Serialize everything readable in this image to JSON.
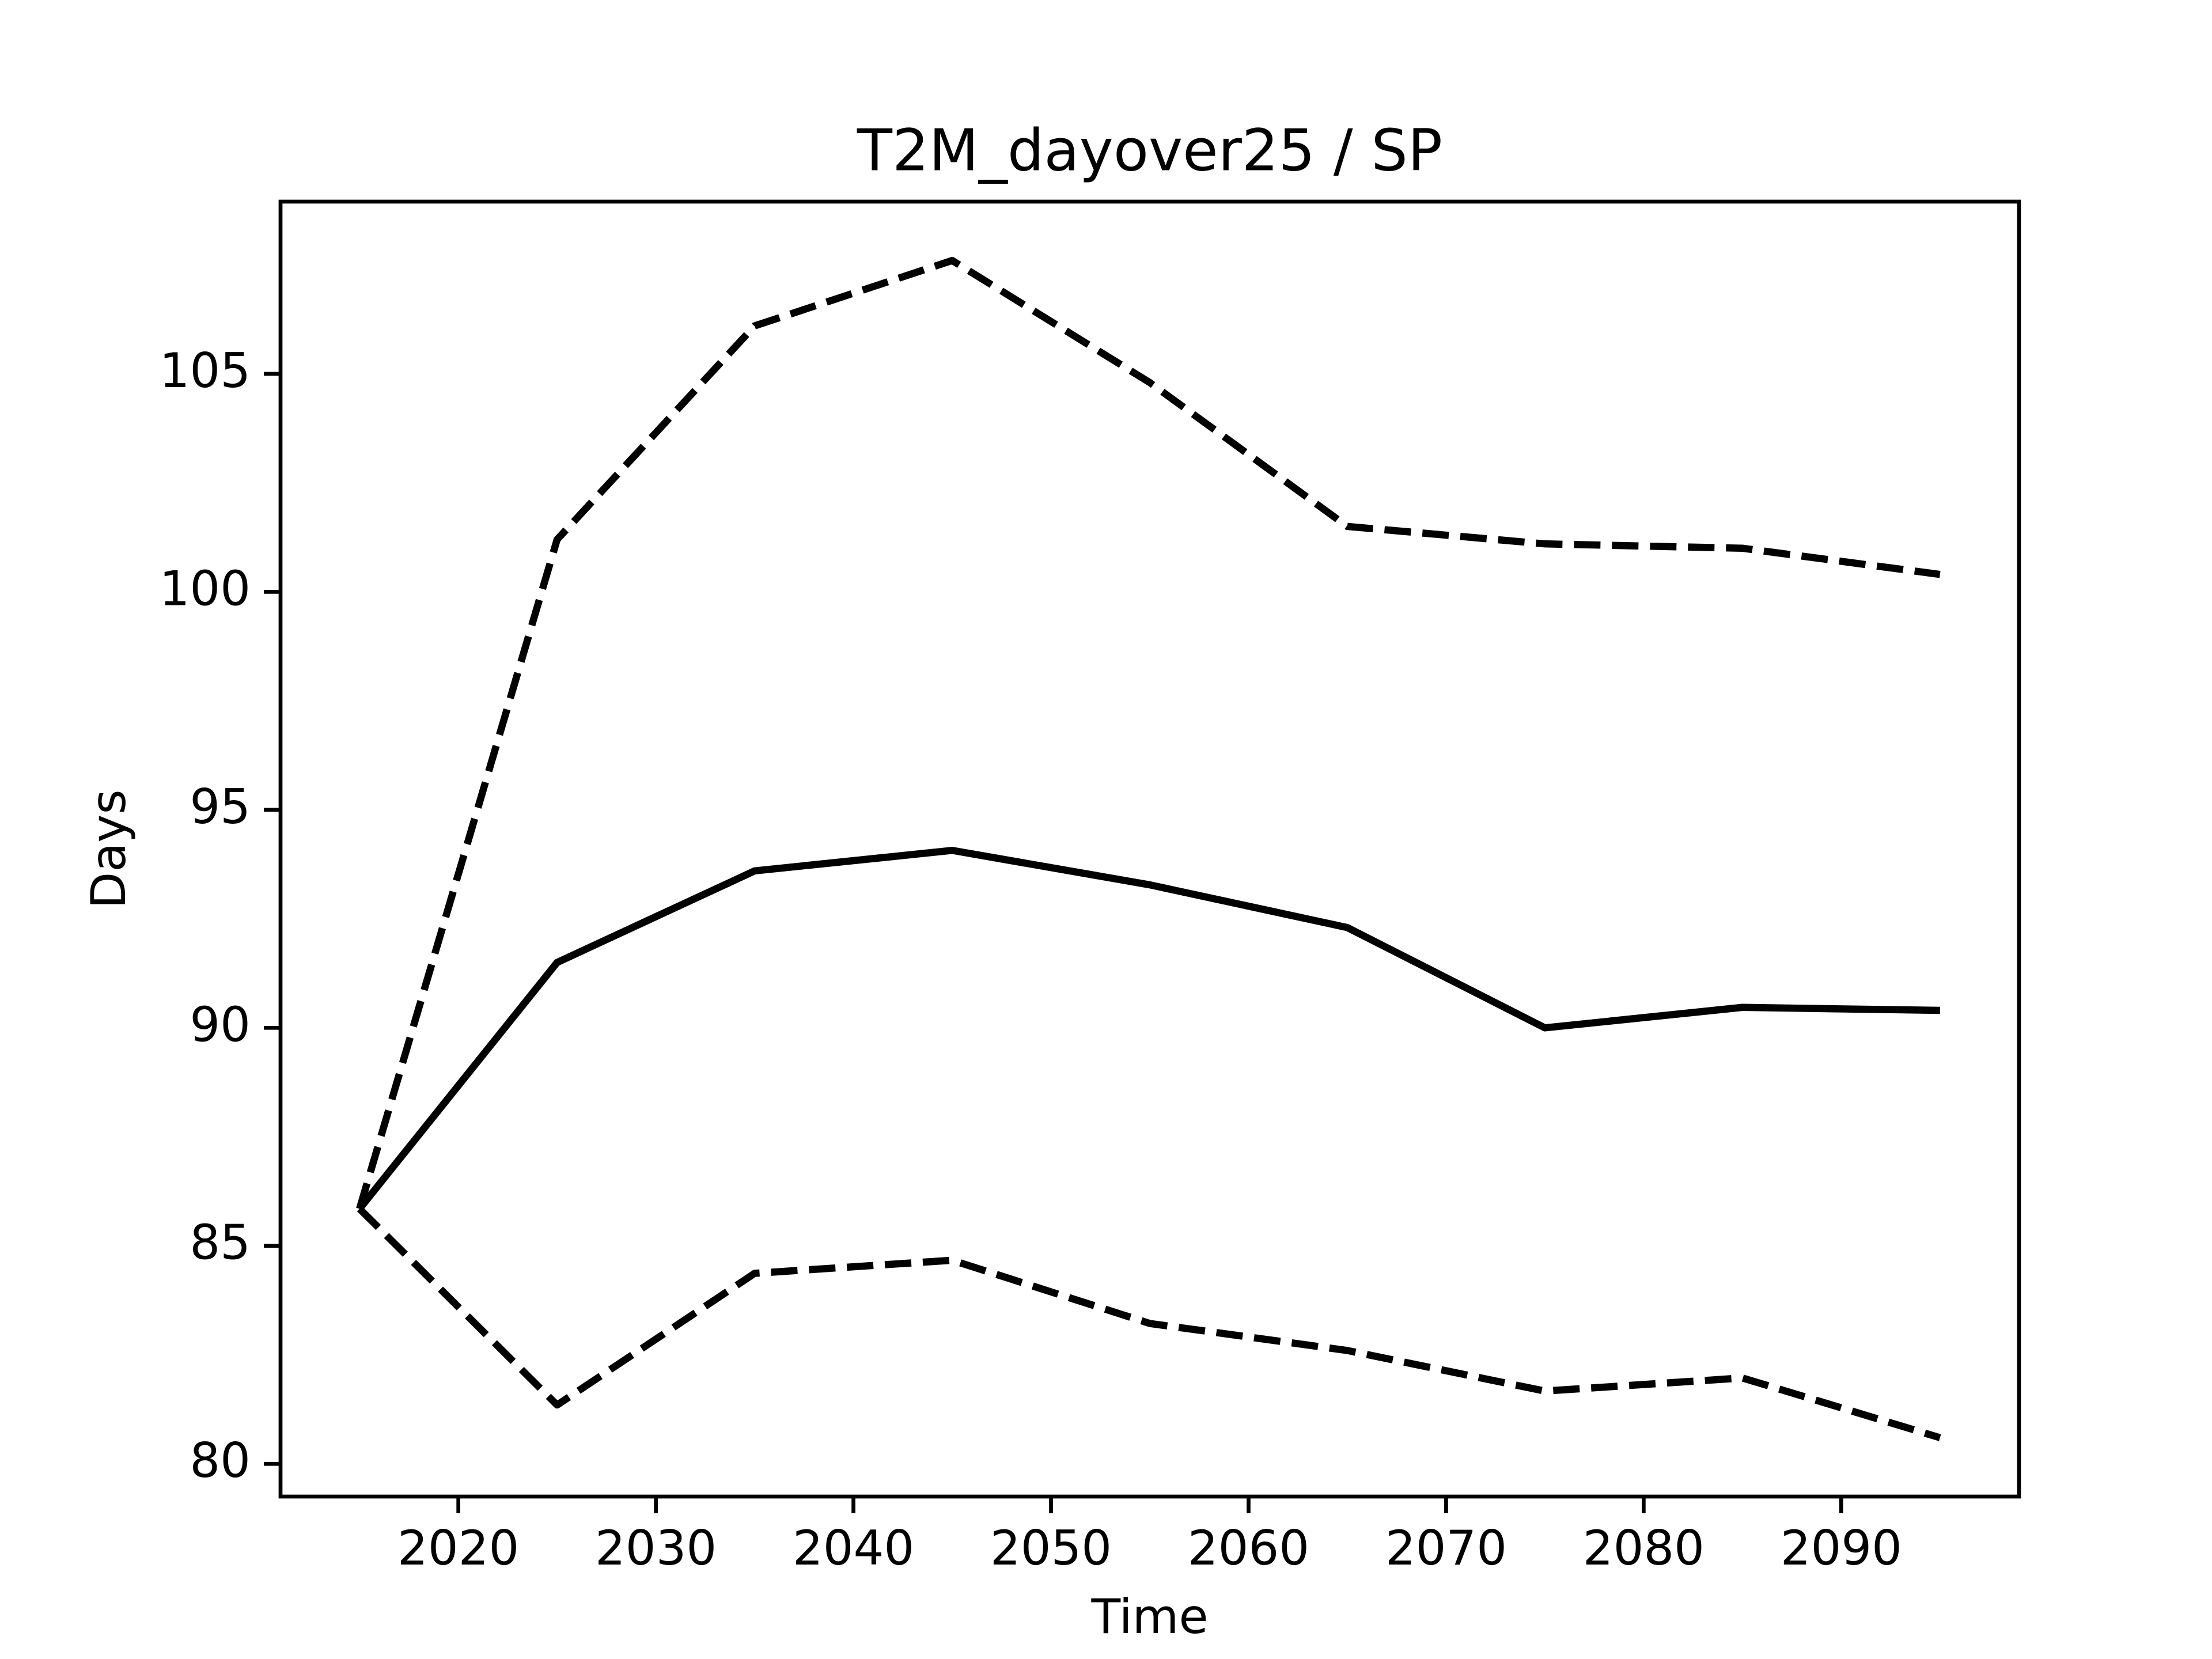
{
  "chart_data": {
    "type": "line",
    "title": "T2M_dayover25 / SP",
    "xlabel": "Time",
    "ylabel": "Days",
    "x": [
      2015,
      2025,
      2035,
      2045,
      2055,
      2065,
      2075,
      2085,
      2095
    ],
    "series": [
      {
        "color": "#000000",
        "linestyle": "solid",
        "values": [
          85.85,
          91.5,
          93.6,
          94.07,
          93.28,
          92.3,
          90.0,
          90.47,
          90.4
        ]
      },
      {
        "color": "#000000",
        "linestyle": "dashed",
        "values": [
          85.85,
          101.2,
          106.1,
          107.6,
          104.8,
          101.5,
          101.1,
          101.0,
          100.4
        ]
      },
      {
        "color": "#000000",
        "linestyle": "dashed",
        "values": [
          85.85,
          81.35,
          84.37,
          84.67,
          83.22,
          82.6,
          81.67,
          81.97,
          80.6
        ]
      }
    ],
    "xlim": [
      2011,
      2099
    ],
    "xticks": [
      2020,
      2030,
      2040,
      2050,
      2060,
      2070,
      2080,
      2090
    ],
    "ylim": [
      79.25,
      108.95
    ],
    "yticks": [
      80,
      85,
      90,
      95,
      100,
      105
    ],
    "grid": false
  }
}
